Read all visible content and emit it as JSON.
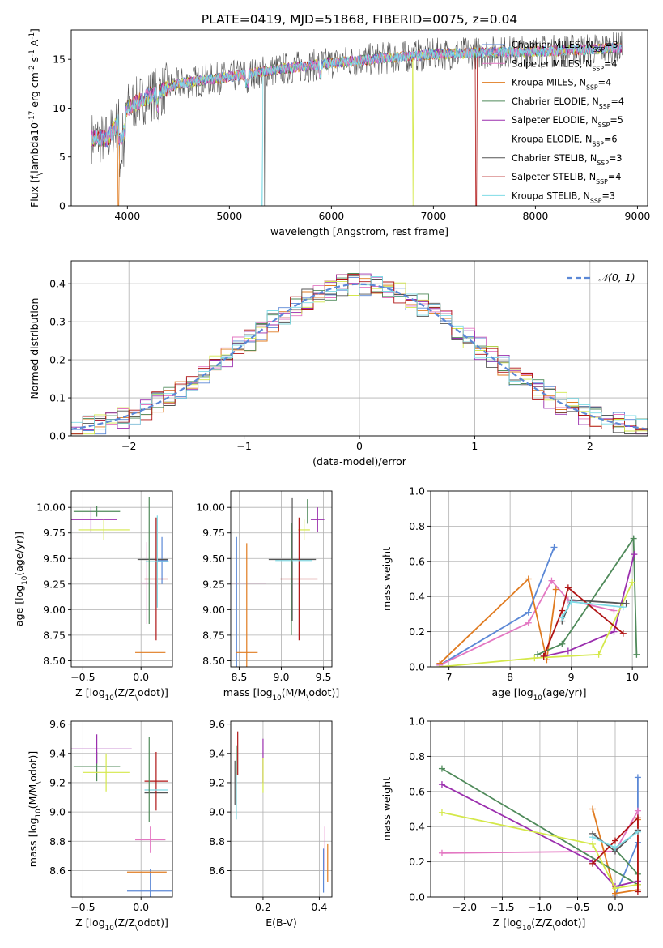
{
  "figure_title": "PLATE=0419, MJD=51868, FIBERID=0075, z=0.04",
  "colors": {
    "ChabrierMILES": "#5b88d6",
    "SalpeterMILES": "#e377c2",
    "KroupaMILES": "#e07b20",
    "ChabrierELODIE": "#4f8a5a",
    "SalpeterELODIE": "#9b2fae",
    "KroupaELODIE": "#d4e84a",
    "ChabrierSTELIB": "#555555",
    "SalpeterSTELIB": "#b01515",
    "KroupaSTELIB": "#7fdbe6"
  },
  "chart_data": [
    {
      "id": "spectrum",
      "type": "line",
      "title": "",
      "xlabel": "wavelength [Angstrom, rest frame]",
      "ylabel": "Flux [f$_\\lambda$10$^{-17}$ erg cm$^{-2}$ s$^{-1}$ A$^{-1}$]",
      "xlim": [
        3450,
        9100
      ],
      "ylim": [
        0,
        18
      ],
      "xticks": [
        4000,
        5000,
        6000,
        7000,
        8000,
        9000
      ],
      "yticks": [
        0,
        5,
        10,
        15
      ],
      "x_range": [
        3650,
        8850
      ],
      "continuum_knots": [
        [
          3650,
          7.0
        ],
        [
          3800,
          6.8
        ],
        [
          4000,
          10.0
        ],
        [
          4200,
          11.2
        ],
        [
          4500,
          12.5
        ],
        [
          5000,
          13.2
        ],
        [
          5500,
          14.0
        ],
        [
          6000,
          14.6
        ],
        [
          6500,
          15.1
        ],
        [
          7000,
          15.5
        ],
        [
          7500,
          15.7
        ],
        [
          8000,
          15.8
        ],
        [
          8500,
          16.0
        ],
        [
          8850,
          16.2
        ]
      ],
      "drops": [
        {
          "x": 3915,
          "series": "Kroupa MILES"
        },
        {
          "x": 5320,
          "series": "Kroupa STELIB"
        },
        {
          "x": 5345,
          "series": "Chabrier STELIB"
        },
        {
          "x": 6800,
          "series": "Kroupa ELODIE"
        },
        {
          "x": 7420,
          "series": "Salpeter STELIB"
        }
      ],
      "legend": [
        {
          "name": "Chabrier MILES",
          "label": "Chabrier MILES, N",
          "sub": "SSP",
          "tail": "=3",
          "color": "#5b88d6"
        },
        {
          "name": "Salpeter MILES",
          "label": "Salpeter MILES, N",
          "sub": "SSP",
          "tail": "=4",
          "color": "#e377c2"
        },
        {
          "name": "Kroupa MILES",
          "label": "Kroupa MILES, N",
          "sub": "SSP",
          "tail": "=4",
          "color": "#e07b20"
        },
        {
          "name": "Chabrier ELODIE",
          "label": "Chabrier ELODIE, N",
          "sub": "SSP",
          "tail": "=4",
          "color": "#4f8a5a"
        },
        {
          "name": "Salpeter ELODIE",
          "label": "Salpeter ELODIE, N",
          "sub": "SSP",
          "tail": "=5",
          "color": "#9b2fae"
        },
        {
          "name": "Kroupa ELODIE",
          "label": "Kroupa ELODIE, N",
          "sub": "SSP",
          "tail": "=6",
          "color": "#d4e84a"
        },
        {
          "name": "Chabrier STELIB",
          "label": "Chabrier STELIB, N",
          "sub": "SSP",
          "tail": "=3",
          "color": "#555555"
        },
        {
          "name": "Salpeter STELIB",
          "label": "Salpeter STELIB, N",
          "sub": "SSP",
          "tail": "=4",
          "color": "#b01515"
        },
        {
          "name": "Kroupa STELIB",
          "label": "Kroupa STELIB, N",
          "sub": "SSP",
          "tail": "=3",
          "color": "#7fdbe6"
        }
      ],
      "legend_loc": "upper right"
    },
    {
      "id": "residual_hist",
      "type": "histogram",
      "xlabel": "(data-model)/error",
      "ylabel": "Normed distribution",
      "xlim": [
        -2.5,
        2.5
      ],
      "ylim": [
        0,
        0.46
      ],
      "xticks": [
        -2,
        -1,
        0,
        1,
        2
      ],
      "yticks": [
        0.0,
        0.1,
        0.2,
        0.3,
        0.4
      ],
      "bin_width": 0.1,
      "grid": true,
      "reference": {
        "name": "$\\mathcal{N}(0,1)$",
        "color": "#5b88d6",
        "style": "dashed",
        "mean": 0,
        "sigma": 1
      },
      "legend_loc": "upper right",
      "series_colors": [
        "#5b88d6",
        "#e377c2",
        "#e07b20",
        "#4f8a5a",
        "#9b2fae",
        "#d4e84a",
        "#555555",
        "#b01515",
        "#7fdbe6"
      ]
    },
    {
      "id": "age_vs_Z",
      "type": "errorbar",
      "xlabel": "Z [log$_{10}$(Z/Z$_\\odot$)]",
      "ylabel": "age  [log$_{10}$(age/yr)]",
      "xlim": [
        -0.6,
        0.27
      ],
      "ylim": [
        8.44,
        10.16
      ],
      "xticks": [
        -0.5,
        0.0
      ],
      "yticks": [
        8.5,
        8.75,
        9.0,
        9.25,
        9.5,
        9.75,
        10.0
      ],
      "grid": true,
      "points": [
        {
          "series": "Chabrier MILES",
          "x": 0.18,
          "y": 9.48,
          "xerr": 0.05,
          "yerr": 0.23
        },
        {
          "series": "Salpeter MILES",
          "x": 0.05,
          "y": 9.26,
          "xerr": 0.05,
          "yerr": 0.4
        },
        {
          "series": "Kroupa MILES",
          "x": 0.08,
          "y": 8.58,
          "xerr": 0.13,
          "yerr": 0.0
        },
        {
          "series": "Chabrier ELODIE",
          "x": -0.38,
          "y": 9.96,
          "xerr": 0.2,
          "yerr": 0.05
        },
        {
          "series": "Salpeter ELODIE",
          "x": -0.43,
          "y": 9.88,
          "xerr": 0.22,
          "yerr": 0.12
        },
        {
          "series": "Kroupa ELODIE",
          "x": -0.32,
          "y": 9.78,
          "xerr": 0.22,
          "yerr": 0.1
        },
        {
          "series": "Chabrier STELIB",
          "x": 0.1,
          "y": 9.49,
          "xerr": 0.13,
          "yerr": 0.0
        },
        {
          "series": "Salpeter STELIB",
          "x": 0.13,
          "y": 9.3,
          "xerr": 0.1,
          "yerr": 0.6
        },
        {
          "series": "Kroupa STELIB",
          "x": 0.14,
          "y": 9.47,
          "xerr": 0.1,
          "yerr": 0.45
        },
        {
          "series": "Chabrier ELODIE",
          "x": 0.07,
          "y": 9.48,
          "xerr": 0.0,
          "yerr": 0.62
        }
      ]
    },
    {
      "id": "age_vs_mass",
      "type": "errorbar",
      "xlabel": "mass [log$_{10}$(M/M$_\\odot$)]",
      "ylabel": "",
      "xlim": [
        8.4,
        9.6
      ],
      "ylim": [
        8.44,
        10.16
      ],
      "xticks": [
        8.5,
        9.0,
        9.5
      ],
      "yticks": [
        8.5,
        8.75,
        9.0,
        9.25,
        9.5,
        9.75,
        10.0
      ],
      "grid": true,
      "points": [
        {
          "series": "Chabrier MILES",
          "x": 8.47,
          "y": 8.58,
          "xerr": 0.0,
          "yerr": 1.13
        },
        {
          "series": "Salpeter MILES",
          "x": 8.6,
          "y": 9.26,
          "xerr": 0.22,
          "yerr": 0.0
        },
        {
          "series": "Kroupa MILES",
          "x": 8.59,
          "y": 8.58,
          "xerr": 0.13,
          "yerr": 1.07
        },
        {
          "series": "Chabrier ELODIE",
          "x": 9.31,
          "y": 9.96,
          "xerr": 0.0,
          "yerr": 0.12
        },
        {
          "series": "Salpeter ELODIE",
          "x": 9.43,
          "y": 9.88,
          "xerr": 0.08,
          "yerr": 0.12
        },
        {
          "series": "Kroupa ELODIE",
          "x": 9.27,
          "y": 9.78,
          "xerr": 0.07,
          "yerr": 0.1
        },
        {
          "series": "Chabrier STELIB",
          "x": 9.13,
          "y": 9.49,
          "xerr": 0.28,
          "yerr": 0.6
        },
        {
          "series": "Salpeter STELIB",
          "x": 9.21,
          "y": 9.3,
          "xerr": 0.22,
          "yerr": 0.6
        },
        {
          "series": "Kroupa STELIB",
          "x": 9.15,
          "y": 9.48,
          "xerr": 0.22,
          "yerr": 0.0
        },
        {
          "series": "Chabrier ELODIE",
          "x": 9.12,
          "y": 9.3,
          "xerr": 0.0,
          "yerr": 0.55
        }
      ]
    },
    {
      "id": "weight_vs_age",
      "type": "line",
      "xlabel": "age  [log$_{10}$(age/yr)]",
      "ylabel": "mass weight",
      "xlim": [
        6.7,
        10.25
      ],
      "ylim": [
        0,
        1
      ],
      "xticks": [
        7,
        8,
        9,
        10
      ],
      "yticks": [
        0.0,
        0.2,
        0.4,
        0.6,
        0.8,
        1.0
      ],
      "grid": true,
      "series": [
        {
          "name": "Chabrier MILES",
          "x": [
            6.85,
            8.3,
            8.72
          ],
          "y": [
            0.01,
            0.31,
            0.68
          ]
        },
        {
          "name": "Salpeter MILES",
          "x": [
            6.85,
            8.3,
            8.68,
            8.95,
            9.7
          ],
          "y": [
            0.01,
            0.25,
            0.49,
            0.38,
            0.32
          ]
        },
        {
          "name": "Kroupa MILES",
          "x": [
            6.85,
            8.3,
            8.6,
            8.75
          ],
          "y": [
            0.02,
            0.5,
            0.04,
            0.44
          ]
        },
        {
          "name": "Chabrier ELODIE",
          "x": [
            8.45,
            8.85,
            10.02,
            10.07
          ],
          "y": [
            0.07,
            0.13,
            0.73,
            0.07
          ]
        },
        {
          "name": "Salpeter ELODIE",
          "x": [
            8.55,
            8.95,
            9.7,
            10.03
          ],
          "y": [
            0.06,
            0.09,
            0.2,
            0.64
          ]
        },
        {
          "name": "Kroupa ELODIE",
          "x": [
            6.85,
            8.4,
            9.45,
            10.0
          ],
          "y": [
            0.0,
            0.05,
            0.07,
            0.48
          ]
        },
        {
          "name": "Chabrier STELIB",
          "x": [
            8.85,
            9.0,
            9.9
          ],
          "y": [
            0.26,
            0.38,
            0.36
          ]
        },
        {
          "name": "Salpeter STELIB",
          "x": [
            8.55,
            8.85,
            8.95,
            9.85
          ],
          "y": [
            0.06,
            0.32,
            0.45,
            0.19
          ]
        },
        {
          "name": "Kroupa STELIB",
          "x": [
            8.85,
            9.0,
            9.85
          ],
          "y": [
            0.28,
            0.37,
            0.34
          ]
        }
      ]
    },
    {
      "id": "mass_vs_Z",
      "type": "errorbar",
      "xlabel": "Z [log$_{10}$(Z/Z$_\\odot$)]",
      "ylabel": "mass [log$_{10}$(M/M$_\\odot$)]",
      "xlim": [
        -0.6,
        0.27
      ],
      "ylim": [
        8.42,
        9.62
      ],
      "xticks": [
        -0.5,
        0.0
      ],
      "yticks": [
        8.6,
        8.8,
        9.0,
        9.2,
        9.4,
        9.6
      ],
      "grid": true,
      "points": [
        {
          "series": "Chabrier MILES",
          "x": 0.08,
          "y": 8.46,
          "xerr": 0.2,
          "yerr": 0.15
        },
        {
          "series": "Salpeter MILES",
          "x": 0.08,
          "y": 8.81,
          "xerr": 0.13,
          "yerr": 0.09
        },
        {
          "series": "Kroupa MILES",
          "x": 0.05,
          "y": 8.59,
          "xerr": 0.17,
          "yerr": 0.0
        },
        {
          "series": "Chabrier ELODIE",
          "x": -0.38,
          "y": 9.31,
          "xerr": 0.2,
          "yerr": 0.1
        },
        {
          "series": "Salpeter ELODIE",
          "x": -0.38,
          "y": 9.43,
          "xerr": 0.3,
          "yerr": 0.1
        },
        {
          "series": "Kroupa ELODIE",
          "x": -0.3,
          "y": 9.27,
          "xerr": 0.2,
          "yerr": 0.13
        },
        {
          "series": "Chabrier STELIB",
          "x": 0.13,
          "y": 9.13,
          "xerr": 0.1,
          "yerr": 0.0
        },
        {
          "series": "Salpeter STELIB",
          "x": 0.13,
          "y": 9.21,
          "xerr": 0.1,
          "yerr": 0.2
        },
        {
          "series": "Kroupa STELIB",
          "x": 0.13,
          "y": 9.15,
          "xerr": 0.1,
          "yerr": 0.0
        },
        {
          "series": "Chabrier ELODIE",
          "x": 0.07,
          "y": 9.22,
          "xerr": 0.0,
          "yerr": 0.29
        }
      ]
    },
    {
      "id": "mass_vs_EBV",
      "type": "errorbar",
      "xlabel": "E(B-V)",
      "ylabel": "",
      "xlim": [
        0.085,
        0.445
      ],
      "ylim": [
        8.42,
        9.62
      ],
      "xticks": [
        0.2,
        0.4
      ],
      "yticks": [
        8.6,
        8.8,
        9.0,
        9.2,
        9.4,
        9.6
      ],
      "grid": true,
      "points": [
        {
          "series": "Chabrier MILES",
          "x": 0.415,
          "y": 8.6,
          "xerr": 0.0,
          "yerr": 0.15
        },
        {
          "series": "Salpeter MILES",
          "x": 0.42,
          "y": 8.75,
          "xerr": 0.0,
          "yerr": 0.15
        },
        {
          "series": "Kroupa MILES",
          "x": 0.43,
          "y": 8.65,
          "xerr": 0.0,
          "yerr": 0.13
        },
        {
          "series": "Chabrier ELODIE",
          "x": 0.105,
          "y": 9.2,
          "xerr": 0.0,
          "yerr": 0.25
        },
        {
          "series": "Salpeter ELODIE",
          "x": 0.2,
          "y": 9.35,
          "xerr": 0.0,
          "yerr": 0.15
        },
        {
          "series": "Kroupa ELODIE",
          "x": 0.2,
          "y": 9.25,
          "xerr": 0.0,
          "yerr": 0.12
        },
        {
          "series": "Chabrier STELIB",
          "x": 0.1,
          "y": 9.2,
          "xerr": 0.0,
          "yerr": 0.15
        },
        {
          "series": "Salpeter STELIB",
          "x": 0.11,
          "y": 9.4,
          "xerr": 0.0,
          "yerr": 0.15
        },
        {
          "series": "Kroupa STELIB",
          "x": 0.105,
          "y": 9.1,
          "xerr": 0.0,
          "yerr": 0.15
        }
      ]
    },
    {
      "id": "weight_vs_Z",
      "type": "line",
      "xlabel": "Z [log$_{10}$(Z/Z$_\\odot$)]",
      "ylabel": "mass weight",
      "xlim": [
        -2.45,
        0.43
      ],
      "ylim": [
        0,
        1
      ],
      "xticks": [
        -2.0,
        -1.5,
        -1.0,
        -0.5,
        0.0
      ],
      "yticks": [
        0.0,
        0.2,
        0.4,
        0.6,
        0.8,
        1.0
      ],
      "grid": true,
      "series": [
        {
          "name": "Chabrier MILES",
          "x": [
            0.0,
            0.3,
            0.3
          ],
          "y": [
            0.01,
            0.31,
            0.68
          ]
        },
        {
          "name": "Salpeter MILES",
          "x": [
            -2.3,
            0.0,
            0.3,
            0.3
          ],
          "y": [
            0.25,
            0.26,
            0.49,
            0.38
          ]
        },
        {
          "name": "Kroupa MILES",
          "x": [
            -0.3,
            0.0,
            0.3,
            0.3
          ],
          "y": [
            0.5,
            0.02,
            0.04,
            0.44
          ]
        },
        {
          "name": "Chabrier ELODIE",
          "x": [
            -2.3,
            0.3,
            0.3,
            0.0
          ],
          "y": [
            0.73,
            0.07,
            0.13,
            0.27
          ]
        },
        {
          "name": "Salpeter ELODIE",
          "x": [
            -2.3,
            -0.3,
            0.0,
            0.3
          ],
          "y": [
            0.64,
            0.2,
            0.06,
            0.09
          ]
        },
        {
          "name": "Kroupa ELODIE",
          "x": [
            -2.3,
            -0.3,
            0.0,
            0.3
          ],
          "y": [
            0.48,
            0.3,
            0.05,
            0.07
          ]
        },
        {
          "name": "Chabrier STELIB",
          "x": [
            -0.3,
            0.0,
            0.3
          ],
          "y": [
            0.36,
            0.26,
            0.38
          ]
        },
        {
          "name": "Salpeter STELIB",
          "x": [
            -0.3,
            0.0,
            0.3,
            0.3
          ],
          "y": [
            0.19,
            0.32,
            0.45,
            0.03
          ]
        },
        {
          "name": "Kroupa STELIB",
          "x": [
            -0.3,
            0.0,
            0.3
          ],
          "y": [
            0.34,
            0.28,
            0.37
          ]
        }
      ]
    }
  ]
}
